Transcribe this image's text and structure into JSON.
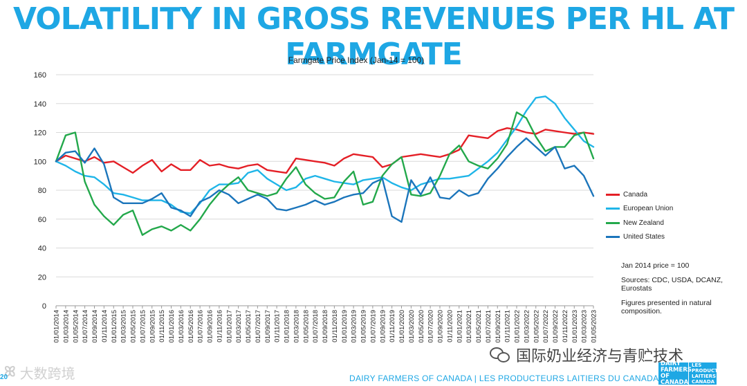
{
  "headline": "VOLATILITY IN GROSS REVENUES PER HL AT FARMGATE",
  "page_number": "20",
  "chart_data": {
    "type": "line",
    "title": "Farmgate Price Index (Jan-14 = 100)",
    "xlabel": "",
    "ylabel": "",
    "ylim": [
      0,
      160
    ],
    "yticks": [
      0,
      20,
      40,
      60,
      80,
      100,
      120,
      140,
      160
    ],
    "grid": true,
    "legend_position": "right",
    "x": [
      "01/01/2014",
      "01/03/2014",
      "01/05/2014",
      "01/07/2014",
      "01/09/2014",
      "01/11/2014",
      "01/01/2015",
      "01/03/2015",
      "01/05/2015",
      "01/07/2015",
      "01/09/2015",
      "01/11/2015",
      "01/01/2016",
      "01/03/2016",
      "01/05/2016",
      "01/07/2016",
      "01/09/2016",
      "01/11/2016",
      "01/01/2017",
      "01/03/2017",
      "01/05/2017",
      "01/07/2017",
      "01/09/2017",
      "01/11/2017",
      "01/01/2018",
      "01/03/2018",
      "01/05/2018",
      "01/07/2018",
      "01/09/2018",
      "01/11/2018",
      "01/01/2019",
      "01/03/2019",
      "01/05/2019",
      "01/07/2019",
      "01/09/2019",
      "01/11/2019",
      "01/01/2020",
      "01/03/2020",
      "01/05/2020",
      "01/07/2020",
      "01/09/2020",
      "01/11/2020",
      "01/01/2021",
      "01/03/2021",
      "01/05/2021",
      "01/07/2021",
      "01/09/2021",
      "01/11/2021",
      "01/01/2022",
      "01/03/2022",
      "01/05/2022",
      "01/07/2022",
      "01/09/2022",
      "01/11/2022",
      "01/01/2023",
      "01/03/2023",
      "01/05/2023"
    ],
    "series": [
      {
        "name": "Canada",
        "color": "#e41f26",
        "values": [
          100,
          104,
          102,
          100,
          103,
          99,
          100,
          96,
          92,
          97,
          101,
          93,
          98,
          94,
          94,
          101,
          97,
          98,
          96,
          95,
          97,
          98,
          94,
          93,
          92,
          102,
          101,
          100,
          99,
          97,
          102,
          105,
          104,
          103,
          96,
          98,
          103,
          104,
          105,
          104,
          103,
          105,
          108,
          118,
          117,
          116,
          121,
          123,
          122,
          120,
          119,
          122,
          121,
          120,
          119,
          120,
          119
        ]
      },
      {
        "name": "European Union",
        "color": "#1fb5e8",
        "values": [
          100,
          97,
          93,
          90,
          89,
          84,
          78,
          77,
          75,
          73,
          73,
          73,
          70,
          65,
          64,
          71,
          80,
          84,
          84,
          85,
          92,
          94,
          88,
          84,
          80,
          82,
          88,
          90,
          88,
          86,
          85,
          84,
          87,
          88,
          89,
          85,
          82,
          80,
          84,
          86,
          88,
          88,
          89,
          90,
          95,
          100,
          106,
          115,
          124,
          135,
          144,
          145,
          140,
          130,
          122,
          114,
          110
        ]
      },
      {
        "name": "New Zealand",
        "color": "#23a84b",
        "values": [
          100,
          118,
          120,
          86,
          70,
          62,
          56,
          63,
          66,
          49,
          53,
          55,
          52,
          56,
          52,
          60,
          70,
          78,
          84,
          89,
          80,
          78,
          76,
          78,
          88,
          96,
          84,
          78,
          74,
          75,
          86,
          93,
          70,
          72,
          90,
          98,
          103,
          77,
          76,
          78,
          90,
          105,
          111,
          100,
          97,
          95,
          102,
          112,
          134,
          130,
          117,
          107,
          110,
          110,
          118,
          120,
          102
        ]
      },
      {
        "name": "United States",
        "color": "#1b75bb",
        "values": [
          100,
          106,
          107,
          99,
          109,
          98,
          75,
          71,
          71,
          71,
          74,
          78,
          68,
          66,
          62,
          72,
          75,
          80,
          77,
          71,
          74,
          77,
          74,
          67,
          66,
          68,
          70,
          73,
          70,
          72,
          75,
          77,
          78,
          85,
          88,
          62,
          58,
          87,
          77,
          89,
          75,
          74,
          80,
          76,
          78,
          88,
          95,
          103,
          110,
          116,
          110,
          104,
          110,
          95,
          97,
          90,
          76
        ]
      }
    ]
  },
  "notes": {
    "baseline": "Jan 2014 price = 100",
    "sources": "Sources: CDC, USDA, DCANZ, Eurostats",
    "figures": "Figures presented in natural composition."
  },
  "footer": {
    "organization": "DAIRY FARMERS OF CANADA  |  LES PRODUCTEURS LAITIERS DU CANADA",
    "logo_en": "DAIRY FARMERS OF CANADA",
    "logo_fr": "LES PRODUCTEURS LAITIERS DU CANADA"
  },
  "wechat_caption": "国际奶业经济与青贮技术",
  "watermark_text": "大数跨境"
}
